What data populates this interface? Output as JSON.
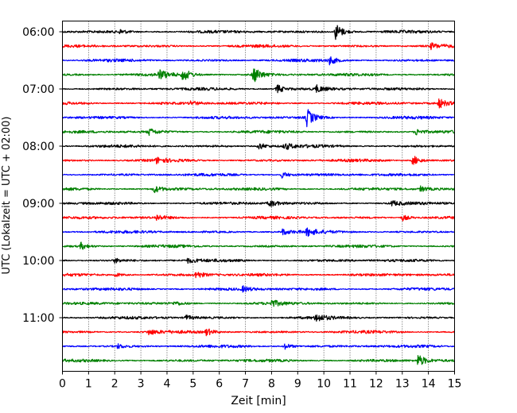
{
  "chart_data": {
    "type": "line",
    "title": "",
    "xlabel": "Zeit  [min]",
    "ylabel": "UTC (Lokalzeit = UTC + 02:00)",
    "xlim": [
      0,
      15
    ],
    "x_ticks": [
      "0",
      "1",
      "2",
      "3",
      "4",
      "5",
      "6",
      "7",
      "8",
      "9",
      "10",
      "11",
      "12",
      "13",
      "14",
      "15"
    ],
    "y_ticks": [
      "06:00",
      "07:00",
      "08:00",
      "09:00",
      "10:00",
      "11:00"
    ],
    "grid": "vertical dotted",
    "trace_colors": [
      "#000000",
      "#ff0000",
      "#0000ff",
      "#008000"
    ],
    "series": [
      {
        "start": "06:00",
        "color": "#000000",
        "events": [
          {
            "t": 10.45,
            "amp": 1.0
          },
          {
            "t": 2.2,
            "amp": 0.25
          }
        ]
      },
      {
        "start": "06:15",
        "color": "#ff0000",
        "events": [
          {
            "t": 14.1,
            "amp": 0.3
          }
        ]
      },
      {
        "start": "06:30",
        "color": "#0000ff",
        "events": [
          {
            "t": 10.2,
            "amp": 0.45
          }
        ]
      },
      {
        "start": "06:45",
        "color": "#008000",
        "events": [
          {
            "t": 3.7,
            "amp": 0.55
          },
          {
            "t": 4.6,
            "amp": 0.75
          },
          {
            "t": 7.3,
            "amp": 1.0
          }
        ]
      },
      {
        "start": "07:00",
        "color": "#000000",
        "events": [
          {
            "t": 8.2,
            "amp": 0.55
          },
          {
            "t": 9.7,
            "amp": 0.4
          }
        ]
      },
      {
        "start": "07:15",
        "color": "#ff0000",
        "events": [
          {
            "t": 4.9,
            "amp": 0.25
          },
          {
            "t": 14.4,
            "amp": 0.55
          }
        ]
      },
      {
        "start": "07:30",
        "color": "#0000ff",
        "events": [
          {
            "t": 9.35,
            "amp": 1.0
          }
        ]
      },
      {
        "start": "07:45",
        "color": "#008000",
        "events": [
          {
            "t": 3.3,
            "amp": 0.4
          },
          {
            "t": 13.5,
            "amp": 0.4
          }
        ]
      },
      {
        "start": "08:00",
        "color": "#000000",
        "events": [
          {
            "t": 7.5,
            "amp": 0.45
          },
          {
            "t": 8.5,
            "amp": 0.4
          }
        ]
      },
      {
        "start": "08:15",
        "color": "#ff0000",
        "events": [
          {
            "t": 13.4,
            "amp": 0.6
          },
          {
            "t": 3.6,
            "amp": 0.3
          }
        ]
      },
      {
        "start": "08:30",
        "color": "#0000ff",
        "events": [
          {
            "t": 8.4,
            "amp": 0.35
          }
        ]
      },
      {
        "start": "08:45",
        "color": "#008000",
        "events": [
          {
            "t": 3.5,
            "amp": 0.4
          },
          {
            "t": 13.7,
            "amp": 0.3
          }
        ]
      },
      {
        "start": "09:00",
        "color": "#000000",
        "events": [
          {
            "t": 7.9,
            "amp": 0.45
          },
          {
            "t": 12.6,
            "amp": 0.3
          },
          {
            "t": 15.0,
            "amp": 0.35
          }
        ]
      },
      {
        "start": "09:15",
        "color": "#ff0000",
        "events": [
          {
            "t": 13.0,
            "amp": 0.35
          },
          {
            "t": 3.6,
            "amp": 0.3
          }
        ]
      },
      {
        "start": "09:30",
        "color": "#0000ff",
        "events": [
          {
            "t": 9.35,
            "amp": 0.45
          },
          {
            "t": 8.4,
            "amp": 0.35
          }
        ]
      },
      {
        "start": "09:45",
        "color": "#008000",
        "events": [
          {
            "t": 0.7,
            "amp": 0.4
          }
        ]
      },
      {
        "start": "10:00",
        "color": "#000000",
        "events": [
          {
            "t": 2.0,
            "amp": 0.25
          },
          {
            "t": 4.8,
            "amp": 0.25
          }
        ]
      },
      {
        "start": "10:15",
        "color": "#ff0000",
        "events": [
          {
            "t": 5.1,
            "amp": 0.45
          },
          {
            "t": 2.0,
            "amp": 0.25
          }
        ]
      },
      {
        "start": "10:30",
        "color": "#0000ff",
        "events": [
          {
            "t": 6.9,
            "amp": 0.3
          }
        ]
      },
      {
        "start": "10:45",
        "color": "#008000",
        "events": [
          {
            "t": 8.0,
            "amp": 0.35
          },
          {
            "t": 4.3,
            "amp": 0.2
          }
        ]
      },
      {
        "start": "11:00",
        "color": "#000000",
        "events": [
          {
            "t": 9.7,
            "amp": 0.45
          },
          {
            "t": 4.7,
            "amp": 0.3
          }
        ]
      },
      {
        "start": "11:15",
        "color": "#ff0000",
        "events": [
          {
            "t": 5.5,
            "amp": 0.4
          },
          {
            "t": 3.3,
            "amp": 0.3
          }
        ]
      },
      {
        "start": "11:30",
        "color": "#0000ff",
        "events": [
          {
            "t": 8.5,
            "amp": 0.35
          },
          {
            "t": 2.1,
            "amp": 0.25
          }
        ]
      },
      {
        "start": "11:45",
        "color": "#008000",
        "events": [
          {
            "t": 13.6,
            "amp": 0.7
          }
        ]
      }
    ]
  }
}
